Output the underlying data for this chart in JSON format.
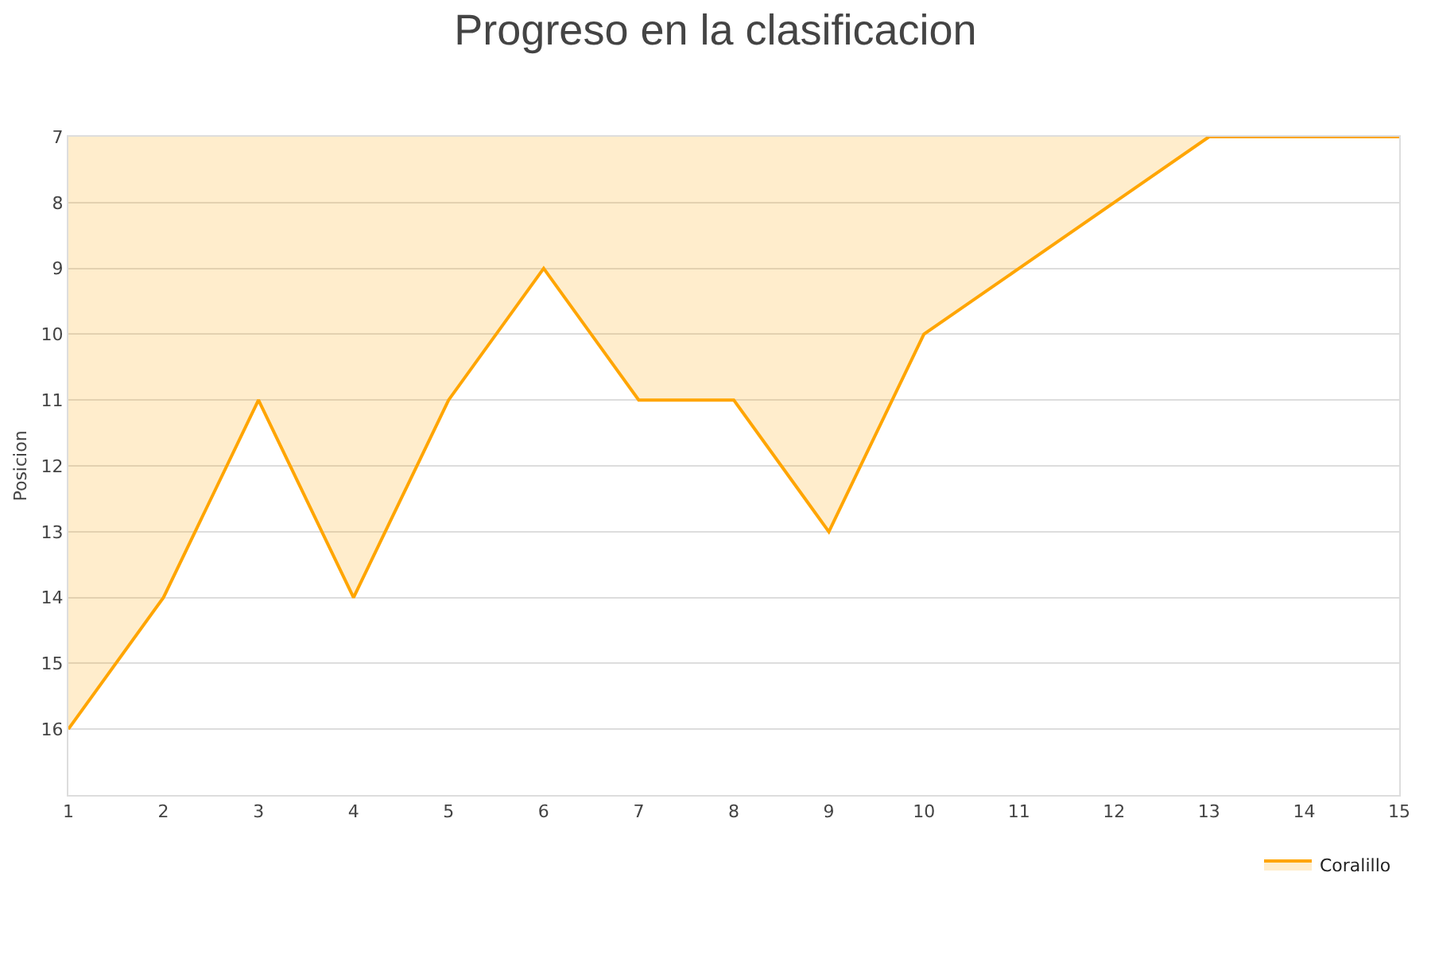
{
  "chart_data": {
    "type": "area",
    "title": "Progreso en la clasificacion",
    "ylabel": "Posicion",
    "x": [
      1,
      2,
      3,
      4,
      5,
      6,
      7,
      8,
      9,
      10,
      11,
      12,
      13,
      14,
      15
    ],
    "series": [
      {
        "name": "Coralillo",
        "color": "#ffa500",
        "values": [
          16,
          14,
          11,
          14,
          11,
          9,
          11,
          11,
          13,
          10,
          9,
          8,
          7,
          7,
          7
        ]
      }
    ],
    "xlim": [
      1,
      15
    ],
    "xticks": [
      1,
      2,
      3,
      4,
      5,
      6,
      7,
      8,
      9,
      10,
      11,
      12,
      13,
      14,
      15
    ],
    "ylim": [
      17,
      7
    ],
    "yticks": [
      7,
      8,
      9,
      10,
      11,
      12,
      13,
      14,
      15,
      16,
      {
        "value": 17,
        "label": null
      }
    ],
    "grid": "y",
    "legend": "bottom right",
    "marker": "none",
    "line_style": "solid"
  }
}
